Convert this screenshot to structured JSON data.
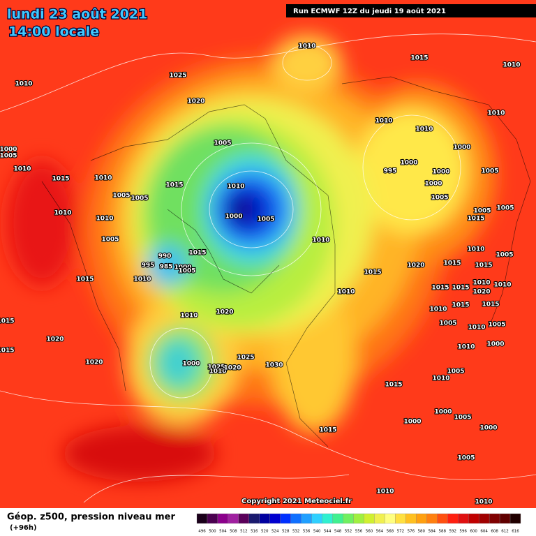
{
  "header": {
    "date": "lundi 23 août 2021",
    "time": "14:00 locale",
    "run": "Run ECMWF 12Z du jeudi 19 août 2021"
  },
  "footer": {
    "title": "Géop. z500, pression niveau mer",
    "lead": "(+96h)",
    "copyright": "Copyright 2021 Meteociel.fr"
  },
  "legend": {
    "ticks": [
      496,
      500,
      504,
      508,
      512,
      516,
      520,
      524,
      528,
      532,
      536,
      540,
      544,
      548,
      552,
      556,
      560,
      564,
      568,
      572,
      576,
      580,
      584,
      588,
      592,
      596,
      600,
      604,
      608,
      612,
      616
    ]
  },
  "isobar_labels": [
    1010,
    1015,
    1010,
    1025,
    1010,
    1020,
    1010,
    1010,
    1010,
    1005,
    1000,
    1000,
    1005,
    1010,
    1000,
    995,
    1000,
    1005,
    1015,
    1010,
    1000,
    1010,
    1015,
    1005,
    1005,
    1005,
    1005,
    1005,
    1000,
    1005,
    1010,
    1010,
    1015,
    1005,
    1010,
    1010,
    1005,
    990,
    1015,
    995,
    985,
    1000,
    1005,
    1020,
    1015,
    1015,
    1015,
    1015,
    1010,
    1015,
    1015,
    1010,
    1010,
    1010,
    1020,
    1010,
    1015,
    1015,
    1010,
    1020,
    1005,
    1010,
    1005,
    1015,
    1020,
    1015,
    1010,
    1000,
    1000,
    1025,
    1025,
    1010,
    1020,
    1030,
    1020,
    1005,
    1010,
    1015,
    1015,
    1000,
    1000,
    1005,
    1000,
    1005,
    1010,
    1010
  ]
}
